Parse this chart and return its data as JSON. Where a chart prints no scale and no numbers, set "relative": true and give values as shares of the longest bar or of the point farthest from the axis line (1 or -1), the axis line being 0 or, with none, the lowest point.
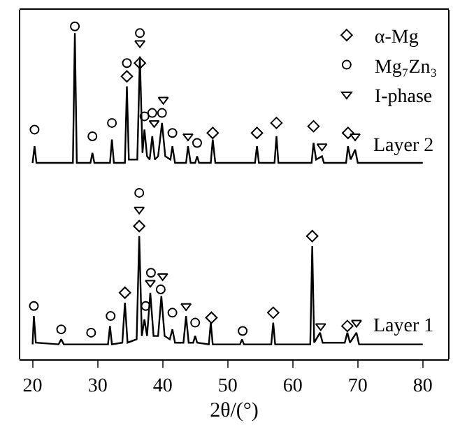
{
  "chart_data": {
    "type": "line",
    "relative": true,
    "xlabel": "2θ/(°)",
    "xlim": [
      18,
      84
    ],
    "xticks": [
      20,
      30,
      40,
      50,
      60,
      70,
      80
    ],
    "legend": "top right",
    "tick_labels": "x",
    "series": [
      {
        "name": "Layer 2",
        "color": "#000000",
        "x": [
          20.0,
          20.3,
          20.6,
          26.2,
          26.5,
          26.8,
          28.9,
          29.2,
          29.5,
          31.9,
          32.2,
          32.5,
          34.2,
          34.5,
          34.8,
          36.1,
          36.5,
          36.9,
          37.2,
          37.6,
          38.0,
          38.4,
          38.8,
          39.3,
          39.9,
          40.4,
          41.2,
          41.5,
          41.9,
          43.6,
          43.9,
          44.3,
          45.0,
          45.3,
          45.6,
          47.4,
          47.7,
          48.1,
          54.2,
          54.5,
          54.8,
          57.2,
          57.5,
          57.8,
          62.9,
          63.2,
          63.6,
          64.5,
          64.8,
          68.2,
          68.5,
          68.9,
          69.6,
          70.0,
          80.0
        ],
        "values": [
          0.59,
          0.64,
          0.59,
          0.59,
          0.98,
          0.59,
          0.59,
          0.62,
          0.59,
          0.59,
          0.66,
          0.59,
          0.59,
          0.82,
          0.6,
          0.6,
          0.91,
          0.62,
          0.69,
          0.61,
          0.6,
          0.67,
          0.6,
          0.61,
          0.71,
          0.61,
          0.6,
          0.64,
          0.59,
          0.59,
          0.64,
          0.59,
          0.59,
          0.61,
          0.59,
          0.59,
          0.66,
          0.59,
          0.59,
          0.64,
          0.59,
          0.59,
          0.67,
          0.59,
          0.59,
          0.65,
          0.6,
          0.61,
          0.59,
          0.59,
          0.64,
          0.6,
          0.63,
          0.59,
          0.59
        ]
      },
      {
        "name": "Layer 1",
        "color": "#000000",
        "x": [
          20.0,
          20.2,
          20.5,
          24.0,
          24.4,
          24.8,
          31.6,
          31.9,
          32.2,
          33.8,
          34.2,
          34.6,
          36.0,
          36.4,
          36.8,
          37.2,
          37.6,
          38.1,
          38.6,
          39.3,
          39.8,
          40.3,
          41.1,
          41.5,
          41.9,
          43.2,
          43.6,
          44.0,
          44.7,
          45.0,
          45.3,
          47.1,
          47.4,
          47.7,
          51.9,
          52.2,
          52.5,
          56.7,
          57.0,
          57.3,
          62.7,
          63.0,
          63.3,
          64.2,
          64.6,
          68.0,
          68.4,
          68.8,
          69.8,
          70.2,
          80.0
        ],
        "values": [
          0.045,
          0.13,
          0.05,
          0.045,
          0.06,
          0.045,
          0.045,
          0.1,
          0.045,
          0.05,
          0.17,
          0.05,
          0.06,
          0.37,
          0.07,
          0.12,
          0.07,
          0.2,
          0.07,
          0.07,
          0.19,
          0.07,
          0.06,
          0.09,
          0.05,
          0.05,
          0.13,
          0.05,
          0.05,
          0.07,
          0.05,
          0.045,
          0.11,
          0.045,
          0.045,
          0.06,
          0.045,
          0.045,
          0.11,
          0.045,
          0.045,
          0.34,
          0.05,
          0.08,
          0.05,
          0.05,
          0.08,
          0.05,
          0.08,
          0.045,
          0.045
        ]
      },
      {
        "type": "scatter",
        "name": "α-Mg",
        "color": "#000000",
        "marker": "diamond",
        "x": [
          34.5,
          36.5,
          47.7,
          54.5,
          57.5,
          63.2,
          68.5,
          34.2,
          36.4,
          47.5,
          57.0,
          63.0,
          68.4
        ],
        "values": [
          0.85,
          0.89,
          0.68,
          0.68,
          0.71,
          0.7,
          0.68,
          0.2,
          0.4,
          0.125,
          0.14,
          0.37,
          0.1
        ]
      },
      {
        "type": "scatter",
        "name": "Mg₇Zn₃",
        "color": "#000000",
        "marker": "circle",
        "x": [
          20.3,
          26.5,
          29.2,
          32.2,
          34.5,
          36.5,
          37.2,
          38.4,
          39.9,
          41.5,
          45.3,
          20.2,
          24.4,
          29.0,
          32.0,
          36.4,
          37.4,
          38.2,
          39.7,
          41.5,
          45.0,
          52.3
        ],
        "values": [
          0.69,
          1.0,
          0.67,
          0.71,
          0.89,
          0.98,
          0.73,
          0.74,
          0.74,
          0.68,
          0.65,
          0.16,
          0.09,
          0.08,
          0.13,
          0.5,
          0.16,
          0.26,
          0.21,
          0.14,
          0.11,
          0.085
        ]
      },
      {
        "type": "scatter",
        "name": "I-phase",
        "color": "#000000",
        "marker": "triangle",
        "x": [
          36.5,
          38.7,
          40.1,
          43.9,
          64.5,
          69.6,
          36.4,
          38.1,
          40.0,
          43.6,
          64.3,
          69.8
        ],
        "values": [
          0.95,
          0.71,
          0.78,
          0.67,
          0.64,
          0.67,
          0.45,
          0.23,
          0.25,
          0.16,
          0.1,
          0.11
        ]
      }
    ]
  }
}
